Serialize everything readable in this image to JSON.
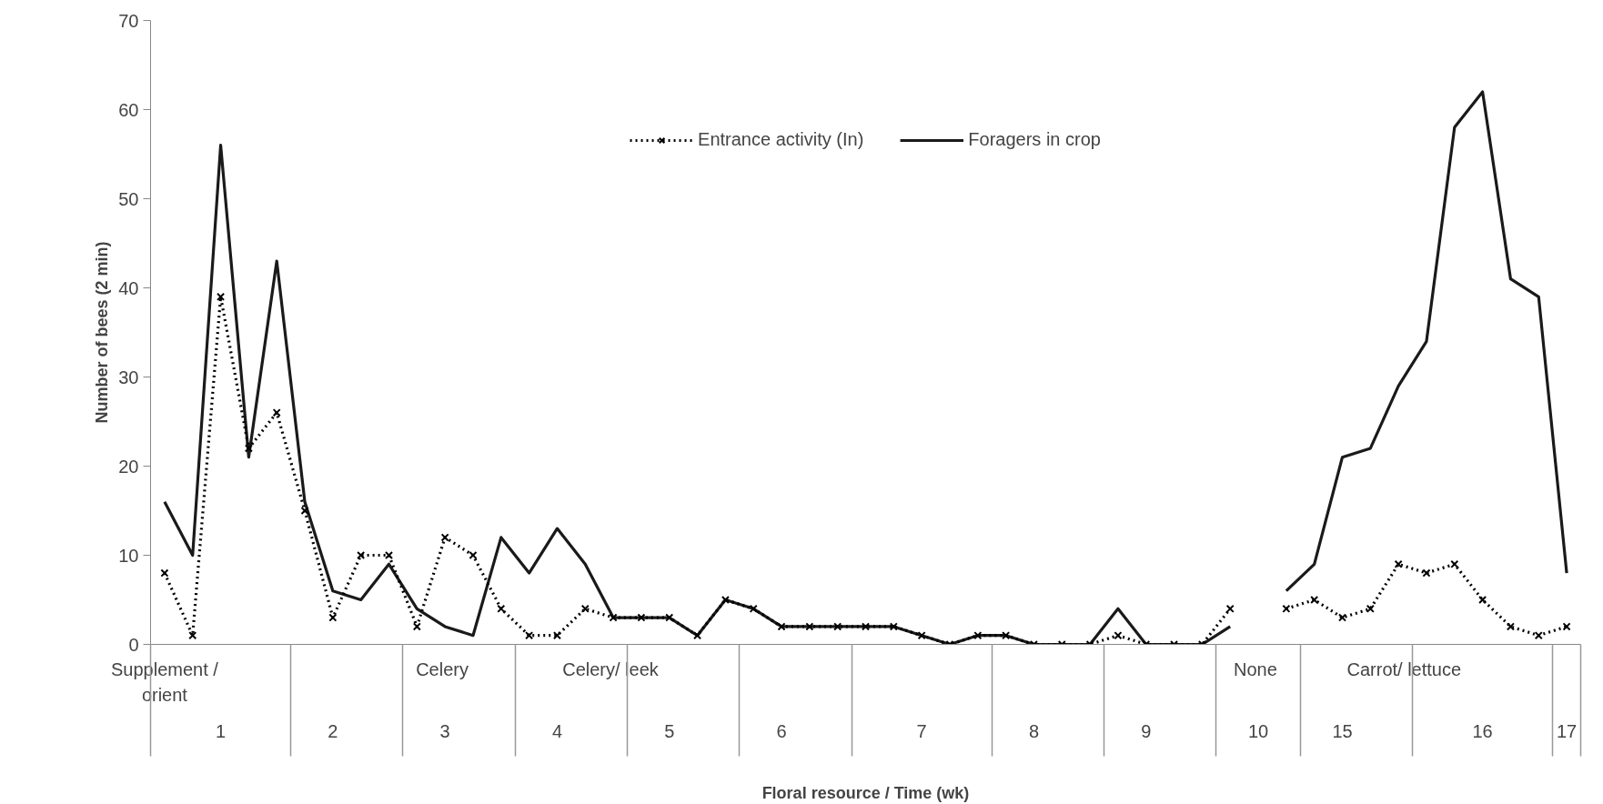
{
  "chart_data": {
    "type": "line",
    "xlabel": "Floral resource / Time (wk)",
    "ylabel": "Number of bees (2 min)",
    "categories": [
      null,
      null,
      "1",
      null,
      null,
      null,
      "2",
      null,
      null,
      null,
      "3",
      null,
      null,
      null,
      "4",
      null,
      null,
      null,
      "5",
      null,
      null,
      null,
      "6",
      null,
      null,
      null,
      null,
      "7",
      null,
      null,
      null,
      "8",
      null,
      null,
      null,
      "9",
      null,
      null,
      null,
      "10",
      null,
      null,
      "15",
      null,
      null,
      null,
      null,
      "16",
      null,
      null,
      "17"
    ],
    "series": [
      {
        "name": "Entrance activity (In)",
        "color": "#000000",
        "marker": "cross",
        "line_style": "dotted",
        "values": [
          8,
          1,
          39,
          22,
          26,
          15,
          3,
          10,
          10,
          2,
          12,
          10,
          4,
          1,
          1,
          4,
          3,
          3,
          3,
          1,
          5,
          4,
          2,
          2,
          2,
          2,
          2,
          1,
          0,
          1,
          1,
          0,
          0,
          0,
          1,
          0,
          0,
          0,
          4,
          null,
          4,
          5,
          3,
          4,
          9,
          8,
          9,
          5,
          2,
          1,
          2
        ]
      },
      {
        "name": "Foragers in crop",
        "color": "#1a1a1a",
        "marker": "none",
        "line_style": "solid",
        "values": [
          16,
          10,
          56,
          21,
          43,
          16,
          6,
          5,
          9,
          4,
          2,
          1,
          12,
          8,
          13,
          9,
          3,
          3,
          3,
          1,
          5,
          4,
          2,
          2,
          2,
          2,
          2,
          1,
          0,
          1,
          1,
          0,
          0,
          0,
          4,
          0,
          0,
          0,
          2,
          null,
          6,
          9,
          21,
          22,
          29,
          34,
          58,
          62,
          41,
          39,
          8
        ]
      }
    ],
    "annotations": [
      "Supplement /\norient",
      "Celery",
      "Celery/ leek",
      "None",
      "Carrot/ lettuce"
    ],
    "ylim": [
      0,
      70
    ],
    "yticks": [
      0,
      10,
      20,
      30,
      40,
      50,
      60,
      70
    ],
    "grid": false,
    "legend": "top"
  }
}
